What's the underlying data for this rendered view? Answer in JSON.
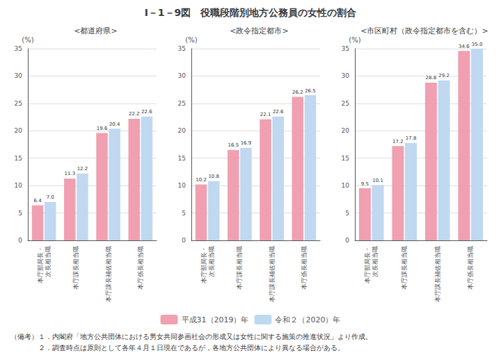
{
  "title": "I－1－9図　役職段階別地方公務員の女性の割合",
  "annotations": [
    "（備考）１．内閣府「地方公共団体における男女共同参画社会の形成又は女性に関する施策の推進状況」より作成。",
    "　　　　２．調査時点は原則として各年４月１日現在であるが，各地方公共団体により異なる場合がある。"
  ],
  "chart_data": [
    {
      "type": "bar",
      "subtitle": "<都道府県>",
      "ylabel": "(%)",
      "categories": [
        "本庁部局長・\n次長相当職",
        "本庁課長相当職",
        "本庁課長補佐相当職",
        "本庁係長相当職"
      ],
      "series": [
        {
          "name": "平成31（2019）年",
          "color": "#f0a0b0",
          "values": [
            6.4,
            11.3,
            19.6,
            22.2
          ],
          "value_labels": [
            "6.4",
            "11.3",
            "19.6",
            "22.2"
          ]
        },
        {
          "name": "令和２（2020）年",
          "color": "#c0d8f0",
          "values": [
            7.0,
            12.2,
            20.4,
            22.6
          ],
          "value_labels": [
            "7.0",
            "12.2",
            "20.4",
            "22.6"
          ]
        }
      ],
      "ylim": [
        0,
        35
      ],
      "yticks": [
        0,
        5,
        10,
        15,
        20,
        25,
        30,
        35
      ],
      "grid": true,
      "data_labels": true
    },
    {
      "type": "bar",
      "subtitle": "<政令指定都市>",
      "ylabel": "(%)",
      "categories": [
        "本庁部局長・\n次長相当職",
        "本庁課長相当職",
        "本庁課長補佐相当職",
        "本庁係長相当職"
      ],
      "series": [
        {
          "name": "平成31（2019）年",
          "color": "#f0a0b0",
          "values": [
            10.2,
            16.5,
            22.1,
            26.2
          ],
          "value_labels": [
            "10.2",
            "16.5",
            "22.1",
            "26.2"
          ]
        },
        {
          "name": "令和２（2020）年",
          "color": "#c0d8f0",
          "values": [
            10.8,
            16.9,
            22.6,
            26.5
          ],
          "value_labels": [
            "10.8",
            "16.9",
            "22.6",
            "26.5"
          ]
        }
      ],
      "ylim": [
        0,
        35
      ],
      "yticks": [
        0,
        5,
        10,
        15,
        20,
        25,
        30,
        35
      ],
      "grid": true,
      "data_labels": true
    },
    {
      "type": "bar",
      "subtitle": "<市区町村（政令指定都市を含む）>",
      "ylabel": "(%)",
      "categories": [
        "本庁部局長・\n次長相当職",
        "本庁課長相当職",
        "本庁課長補佐相当職",
        "本庁係長相当職"
      ],
      "series": [
        {
          "name": "平成31（2019）年",
          "color": "#f0a0b0",
          "values": [
            9.5,
            17.2,
            28.8,
            34.6
          ],
          "value_labels": [
            "9.5",
            "17.2",
            "28.8",
            "34.6"
          ]
        },
        {
          "name": "令和２（2020）年",
          "color": "#c0d8f0",
          "values": [
            10.1,
            17.8,
            29.2,
            35.0
          ],
          "value_labels": [
            "10.1",
            "17.8",
            "29.2",
            "35.0"
          ]
        }
      ],
      "ylim": [
        0,
        35
      ],
      "yticks": [
        0,
        5,
        10,
        15,
        20,
        25,
        30,
        35
      ],
      "grid": true,
      "data_labels": true
    }
  ]
}
